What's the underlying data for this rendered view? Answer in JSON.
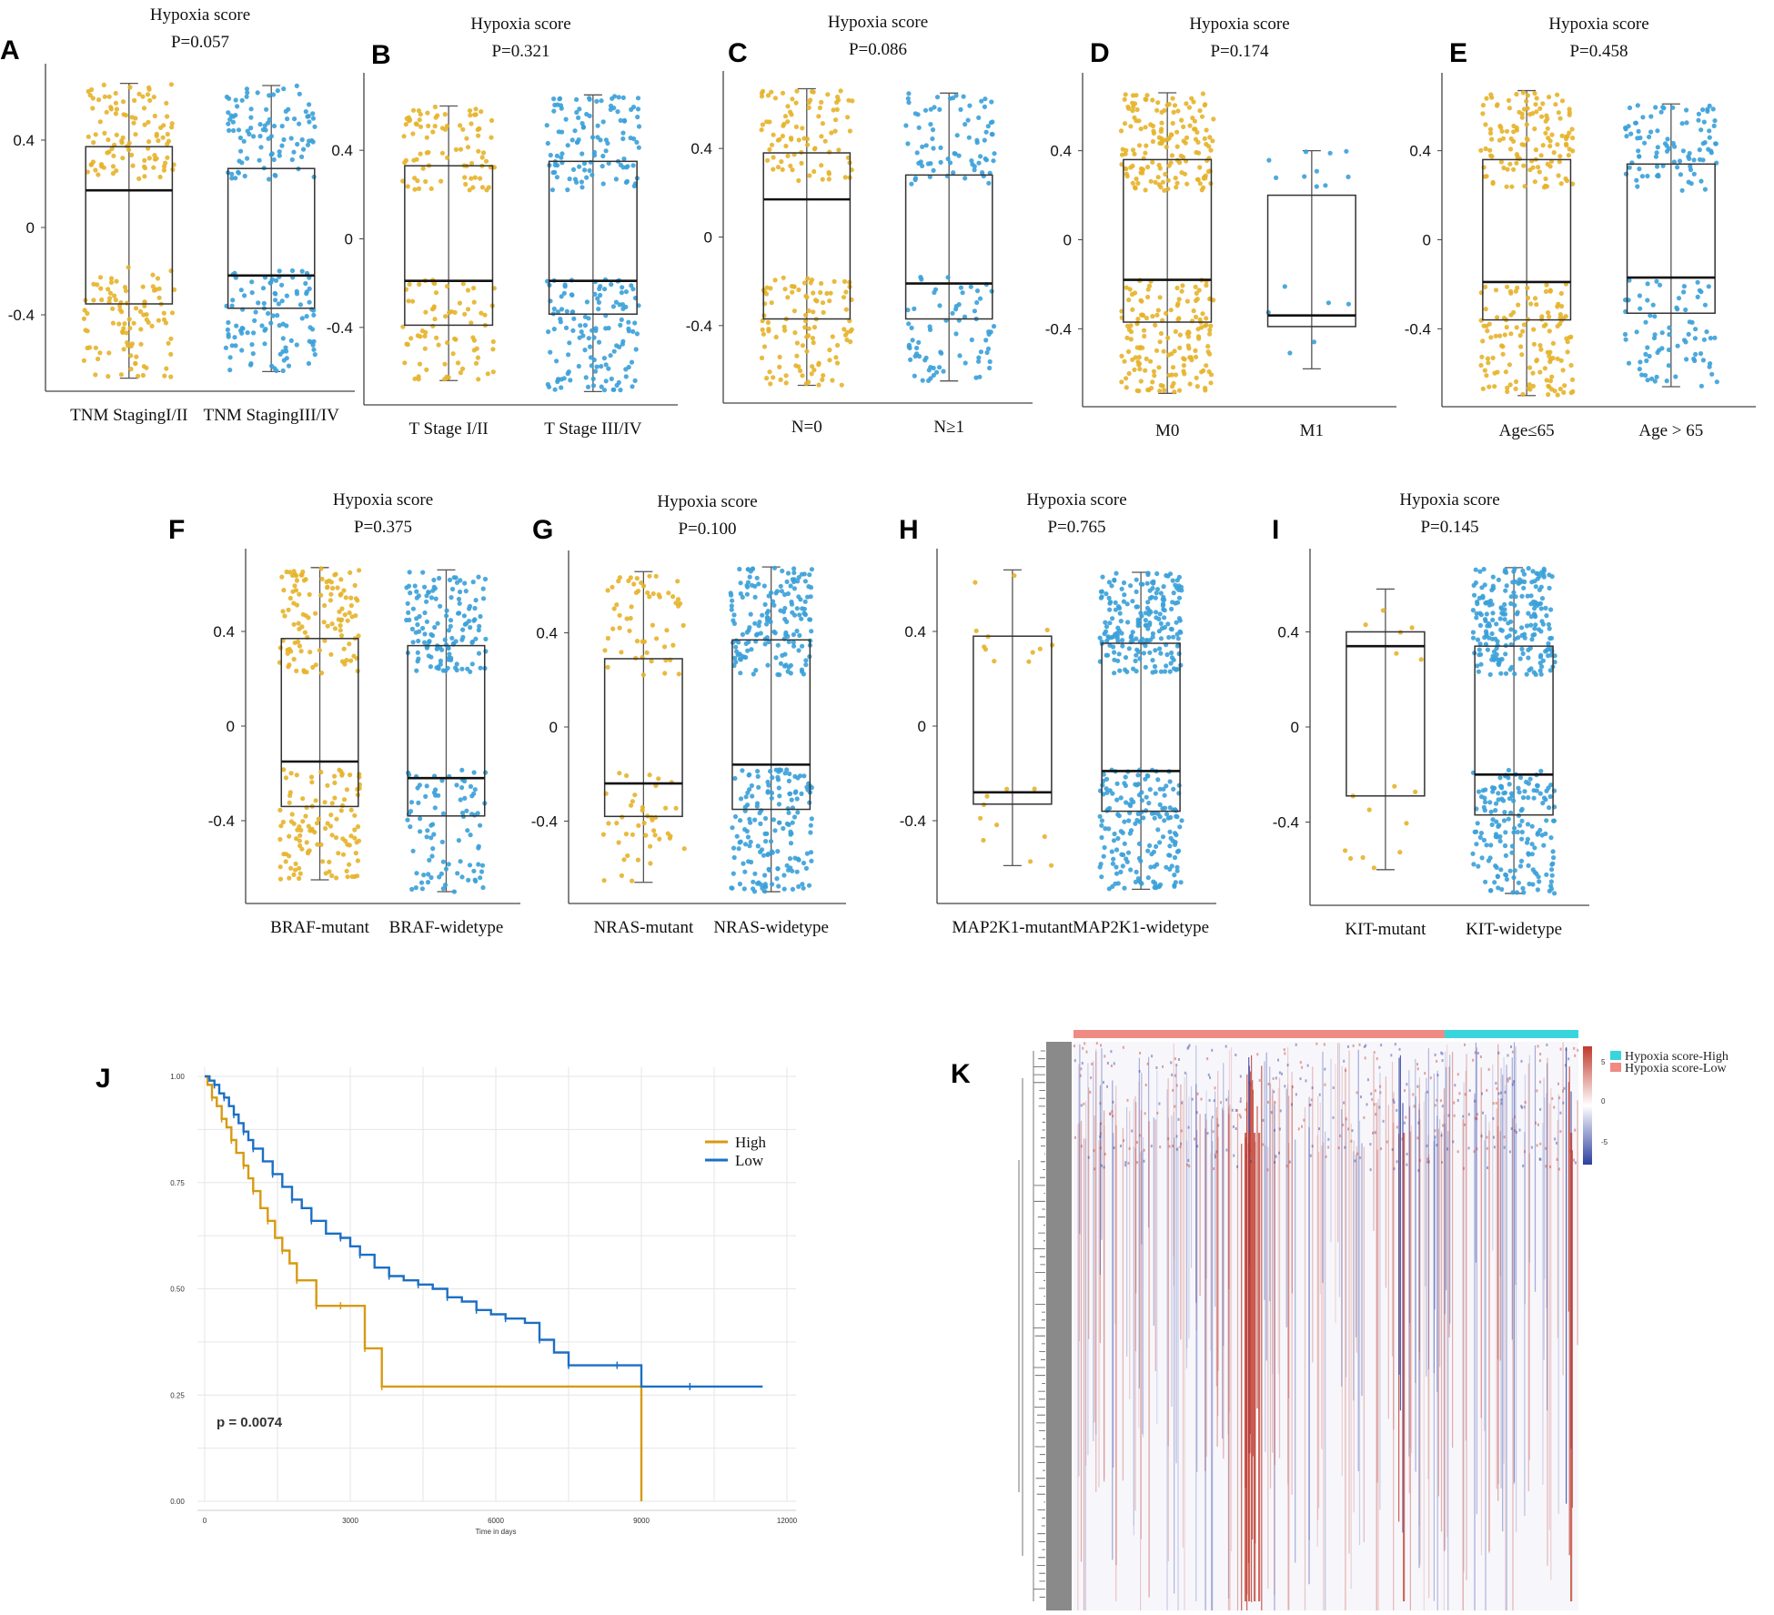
{
  "colors": {
    "gold": "#e6b32a",
    "blue": "#3aa0d8",
    "km_high": "#d79a11",
    "km_low": "#1b6fc4",
    "heat_pos": "#c0392b",
    "heat_neg": "#2c3e9e",
    "anno_high": "#38d6dc",
    "anno_low": "#f08a84"
  },
  "panels": [
    {
      "label": "A",
      "title": "Hypoxia score",
      "pvalue": "P=0.057",
      "groups": [
        {
          "name": "TNM StagingI/II",
          "color": "gold",
          "q1": -0.35,
          "median": 0.17,
          "q3": 0.37,
          "wmin": -0.69,
          "wmax": 0.66,
          "n": 200
        },
        {
          "name": "TNM StagingIII/IV",
          "color": "blue",
          "q1": -0.37,
          "median": -0.22,
          "q3": 0.27,
          "wmin": -0.66,
          "wmax": 0.65,
          "n": 200
        }
      ]
    },
    {
      "label": "B",
      "title": "Hypoxia score",
      "pvalue": "P=0.321",
      "groups": [
        {
          "name": "T Stage I/II",
          "color": "gold",
          "q1": -0.39,
          "median": -0.19,
          "q3": 0.33,
          "wmin": -0.64,
          "wmax": 0.6,
          "n": 160
        },
        {
          "name": "T Stage III/IV",
          "color": "blue",
          "q1": -0.34,
          "median": -0.19,
          "q3": 0.35,
          "wmin": -0.69,
          "wmax": 0.65,
          "n": 240
        }
      ]
    },
    {
      "label": "C",
      "title": "Hypoxia score",
      "pvalue": "P=0.086",
      "groups": [
        {
          "name": "N=0",
          "color": "gold",
          "q1": -0.37,
          "median": 0.17,
          "q3": 0.38,
          "wmin": -0.67,
          "wmax": 0.67,
          "n": 200
        },
        {
          "name": "N≥1",
          "color": "blue",
          "q1": -0.37,
          "median": -0.21,
          "q3": 0.28,
          "wmin": -0.65,
          "wmax": 0.65,
          "n": 150
        }
      ]
    },
    {
      "label": "D",
      "title": "Hypoxia score",
      "pvalue": "P=0.174",
      "groups": [
        {
          "name": "M0",
          "color": "gold",
          "q1": -0.37,
          "median": -0.18,
          "q3": 0.36,
          "wmin": -0.69,
          "wmax": 0.66,
          "n": 320
        },
        {
          "name": "M1",
          "color": "blue",
          "q1": -0.39,
          "median": -0.34,
          "q3": 0.2,
          "wmin": -0.58,
          "wmax": 0.4,
          "n": 16
        }
      ]
    },
    {
      "label": "E",
      "title": "Hypoxia score",
      "pvalue": "P=0.458",
      "groups": [
        {
          "name": "Age≤65",
          "color": "gold",
          "q1": -0.36,
          "median": -0.19,
          "q3": 0.36,
          "wmin": -0.7,
          "wmax": 0.67,
          "n": 260
        },
        {
          "name": "Age > 65",
          "color": "blue",
          "q1": -0.33,
          "median": -0.17,
          "q3": 0.34,
          "wmin": -0.66,
          "wmax": 0.61,
          "n": 170
        }
      ]
    },
    {
      "label": "F",
      "title": "Hypoxia score",
      "pvalue": "P=0.375",
      "groups": [
        {
          "name": "BRAF-mutant",
          "color": "gold",
          "q1": -0.34,
          "median": -0.15,
          "q3": 0.37,
          "wmin": -0.65,
          "wmax": 0.67,
          "n": 230
        },
        {
          "name": "BRAF-widetype",
          "color": "blue",
          "q1": -0.38,
          "median": -0.22,
          "q3": 0.34,
          "wmin": -0.7,
          "wmax": 0.66,
          "n": 230
        }
      ]
    },
    {
      "label": "G",
      "title": "Hypoxia score",
      "pvalue": "P=0.100",
      "groups": [
        {
          "name": "NRAS-mutant",
          "color": "gold",
          "q1": -0.38,
          "median": -0.24,
          "q3": 0.29,
          "wmin": -0.66,
          "wmax": 0.66,
          "n": 100
        },
        {
          "name": "NRAS-widetype",
          "color": "blue",
          "q1": -0.35,
          "median": -0.16,
          "q3": 0.37,
          "wmin": -0.7,
          "wmax": 0.68,
          "n": 330
        }
      ]
    },
    {
      "label": "H",
      "title": "Hypoxia score",
      "pvalue": "P=0.765",
      "groups": [
        {
          "name": "MAP2K1-mutant",
          "color": "gold",
          "q1": -0.33,
          "median": -0.28,
          "q3": 0.38,
          "wmin": -0.59,
          "wmax": 0.66,
          "n": 22
        },
        {
          "name": "MAP2K1-widetype",
          "color": "blue",
          "q1": -0.36,
          "median": -0.19,
          "q3": 0.35,
          "wmin": -0.69,
          "wmax": 0.65,
          "n": 380
        }
      ]
    },
    {
      "label": "I",
      "title": "Hypoxia score",
      "pvalue": "P=0.145",
      "groups": [
        {
          "name": "KIT-mutant",
          "color": "gold",
          "q1": -0.29,
          "median": 0.34,
          "q3": 0.4,
          "wmin": -0.6,
          "wmax": 0.58,
          "n": 16
        },
        {
          "name": "KIT-widetype",
          "color": "blue",
          "q1": -0.37,
          "median": -0.2,
          "q3": 0.34,
          "wmin": -0.7,
          "wmax": 0.67,
          "n": 390
        }
      ]
    }
  ],
  "km": {
    "label": "J",
    "xlabel": "Time in days",
    "pvalue": "p = 0.0074",
    "xticks": [
      "0",
      "3000",
      "6000",
      "9000",
      "12000"
    ],
    "yticks": [
      "0.00",
      "0.25",
      "0.50",
      "0.75",
      "1.00"
    ]
  },
  "heatmap": {
    "label": "K",
    "legend": [
      "Hypoxia score-High",
      "Hypoxia score-Low"
    ],
    "scale_ticks": [
      "5",
      "0",
      "-5"
    ]
  },
  "chart_data": [
    {
      "type": "scatter",
      "subtype": "box-jitter",
      "title": "Hypoxia score",
      "annotation": "P=0.057",
      "ylim": [
        -0.75,
        0.75
      ],
      "yticks": [
        -0.4,
        0,
        0.4
      ],
      "categories": [
        "TNM StagingI/II",
        "TNM StagingIII/IV"
      ],
      "medians": [
        0.17,
        -0.22
      ]
    },
    {
      "type": "scatter",
      "subtype": "box-jitter",
      "title": "Hypoxia score",
      "annotation": "P=0.321",
      "ylim": [
        -0.75,
        0.75
      ],
      "yticks": [
        -0.4,
        0,
        0.4
      ],
      "categories": [
        "T Stage I/II",
        "T Stage III/IV"
      ],
      "medians": [
        -0.19,
        -0.19
      ]
    },
    {
      "type": "scatter",
      "subtype": "box-jitter",
      "title": "Hypoxia score",
      "annotation": "P=0.086",
      "ylim": [
        -0.75,
        0.75
      ],
      "yticks": [
        -0.4,
        0,
        0.4
      ],
      "categories": [
        "N=0",
        "N≥1"
      ],
      "medians": [
        0.17,
        -0.21
      ]
    },
    {
      "type": "scatter",
      "subtype": "box-jitter",
      "title": "Hypoxia score",
      "annotation": "P=0.174",
      "ylim": [
        -0.75,
        0.75
      ],
      "yticks": [
        -0.4,
        0,
        0.4
      ],
      "categories": [
        "M0",
        "M1"
      ],
      "medians": [
        -0.18,
        -0.34
      ]
    },
    {
      "type": "scatter",
      "subtype": "box-jitter",
      "title": "Hypoxia score",
      "annotation": "P=0.458",
      "ylim": [
        -0.75,
        0.75
      ],
      "yticks": [
        -0.4,
        0,
        0.4
      ],
      "categories": [
        "Age≤65",
        "Age > 65"
      ],
      "medians": [
        -0.19,
        -0.17
      ]
    },
    {
      "type": "scatter",
      "subtype": "box-jitter",
      "title": "Hypoxia score",
      "annotation": "P=0.375",
      "ylim": [
        -0.75,
        0.75
      ],
      "yticks": [
        -0.4,
        0,
        0.4
      ],
      "categories": [
        "BRAF-mutant",
        "BRAF-widetype"
      ],
      "medians": [
        -0.15,
        -0.22
      ]
    },
    {
      "type": "scatter",
      "subtype": "box-jitter",
      "title": "Hypoxia score",
      "annotation": "P=0.100",
      "ylim": [
        -0.75,
        0.75
      ],
      "yticks": [
        -0.4,
        0,
        0.4
      ],
      "categories": [
        "NRAS-mutant",
        "NRAS-widetype"
      ],
      "medians": [
        -0.24,
        -0.16
      ]
    },
    {
      "type": "scatter",
      "subtype": "box-jitter",
      "title": "Hypoxia score",
      "annotation": "P=0.765",
      "ylim": [
        -0.75,
        0.75
      ],
      "yticks": [
        -0.4,
        0,
        0.4
      ],
      "categories": [
        "MAP2K1-mutant",
        "MAP2K1-widetype"
      ],
      "medians": [
        -0.28,
        -0.19
      ]
    },
    {
      "type": "scatter",
      "subtype": "box-jitter",
      "title": "Hypoxia score",
      "annotation": "P=0.145",
      "ylim": [
        -0.75,
        0.75
      ],
      "yticks": [
        -0.4,
        0,
        0.4
      ],
      "categories": [
        "KIT-mutant",
        "KIT-widetype"
      ],
      "medians": [
        0.34,
        -0.2
      ]
    },
    {
      "type": "line",
      "subtype": "kaplan-meier",
      "xlabel": "Time in days",
      "ylabel": "",
      "xlim": [
        0,
        12000
      ],
      "ylim": [
        0,
        1
      ],
      "annotation": "p = 0.0074",
      "series": [
        {
          "name": "High",
          "x": [
            0,
            60,
            150,
            250,
            350,
            450,
            550,
            650,
            800,
            900,
            1000,
            1150,
            1300,
            1450,
            1600,
            1750,
            1900,
            2100,
            2300,
            2500,
            2800,
            3100,
            3300,
            3500,
            3650,
            3800,
            9000,
            9000
          ],
          "y": [
            1.0,
            0.98,
            0.95,
            0.93,
            0.9,
            0.88,
            0.85,
            0.82,
            0.79,
            0.76,
            0.73,
            0.69,
            0.66,
            0.62,
            0.59,
            0.56,
            0.52,
            0.52,
            0.46,
            0.46,
            0.46,
            0.46,
            0.36,
            0.36,
            0.27,
            0.27,
            0.27,
            0.0
          ]
        },
        {
          "name": "Low",
          "x": [
            0,
            100,
            200,
            300,
            400,
            500,
            600,
            700,
            800,
            900,
            1000,
            1200,
            1400,
            1600,
            1800,
            2000,
            2200,
            2500,
            2800,
            3000,
            3200,
            3500,
            3800,
            4100,
            4400,
            4700,
            5000,
            5300,
            5600,
            5900,
            6200,
            6600,
            6900,
            7200,
            7500,
            8000,
            8500,
            9000,
            10000,
            11500
          ],
          "y": [
            1.0,
            0.99,
            0.98,
            0.96,
            0.95,
            0.93,
            0.91,
            0.89,
            0.87,
            0.85,
            0.83,
            0.8,
            0.77,
            0.74,
            0.71,
            0.69,
            0.66,
            0.63,
            0.62,
            0.6,
            0.58,
            0.55,
            0.53,
            0.52,
            0.51,
            0.5,
            0.48,
            0.47,
            0.45,
            0.44,
            0.43,
            0.42,
            0.38,
            0.35,
            0.32,
            0.32,
            0.32,
            0.27,
            0.27,
            0.27
          ]
        }
      ]
    },
    {
      "type": "heatmap",
      "annotation_groups": [
        "Hypoxia score-High",
        "Hypoxia score-Low"
      ],
      "color_range": [
        -5,
        5
      ],
      "dendrogram": "rows"
    }
  ]
}
